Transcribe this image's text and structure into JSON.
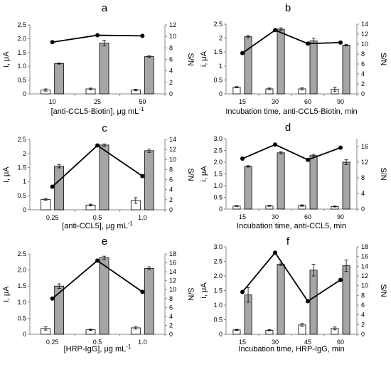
{
  "chart_data": [
    {
      "type": "bar",
      "panel_label": "a",
      "xlabel": "[anti-CCL5-Biotin], μg mL",
      "xlabel_sup": "-1",
      "ylabel": "i, μA",
      "y2label": "S/N",
      "categories": [
        "10",
        "25",
        "50"
      ],
      "ylim": [
        0,
        2.5
      ],
      "y_ticks": [
        "0",
        "0.5",
        "1.0",
        "1.5",
        "2.0",
        "2.5"
      ],
      "y2lim": [
        0,
        12
      ],
      "y2_ticks": [
        "0",
        "2",
        "4",
        "6",
        "8",
        "10",
        "12"
      ],
      "series": [
        {
          "values": [
            0.14,
            0.18,
            0.14
          ],
          "errors": [
            0.04,
            0.03,
            0.03
          ],
          "color": "#ffffff",
          "kind": "bar"
        },
        {
          "values": [
            1.1,
            1.84,
            1.35
          ],
          "errors": [
            0.02,
            0.1,
            0.03
          ],
          "color": "#a6a6a6",
          "kind": "bar"
        },
        {
          "values": [
            9.0,
            10.2,
            10.1
          ],
          "color": "#000000",
          "kind": "line",
          "axis": "right"
        }
      ]
    },
    {
      "type": "bar",
      "panel_label": "b",
      "xlabel": "Incubation time, anti-CCL5-Biotin, min",
      "ylabel": "i, μA",
      "y2label": "S/N",
      "categories": [
        "15",
        "30",
        "60",
        "90"
      ],
      "ylim": [
        0,
        2.5
      ],
      "y_ticks": [
        "0",
        "0.5",
        "1",
        "1.5",
        "2",
        "2.5"
      ],
      "y2lim": [
        0,
        14
      ],
      "y2_ticks": [
        "0",
        "2",
        "4",
        "6",
        "8",
        "10",
        "12",
        "14"
      ],
      "series": [
        {
          "values": [
            0.24,
            0.18,
            0.18,
            0.16
          ],
          "errors": [
            0.02,
            0.03,
            0.04,
            0.08
          ],
          "color": "#ffffff",
          "kind": "bar"
        },
        {
          "values": [
            2.05,
            2.32,
            1.9,
            1.75
          ],
          "errors": [
            0.04,
            0.05,
            0.1,
            0.03
          ],
          "color": "#a6a6a6",
          "kind": "bar"
        },
        {
          "values": [
            8.2,
            12.8,
            10.1,
            10.3
          ],
          "color": "#000000",
          "kind": "line",
          "axis": "right"
        }
      ]
    },
    {
      "type": "bar",
      "panel_label": "c",
      "xlabel": "[anti-CCL5], μg mL",
      "xlabel_sup": "-1",
      "ylabel": "i, μA",
      "y2label": "S/N",
      "categories": [
        "0.25",
        "0.5",
        "1.0"
      ],
      "ylim": [
        0,
        2.5
      ],
      "y_ticks": [
        "0",
        "0.5",
        "1",
        "1.5",
        "2",
        "2.5"
      ],
      "y2lim": [
        0,
        14
      ],
      "y2_ticks": [
        "0",
        "2",
        "4",
        "6",
        "8",
        "10",
        "12",
        "14"
      ],
      "series": [
        {
          "values": [
            0.37,
            0.17,
            0.33
          ],
          "errors": [
            0.03,
            0.03,
            0.1
          ],
          "color": "#ffffff",
          "kind": "bar"
        },
        {
          "values": [
            1.55,
            2.3,
            2.1
          ],
          "errors": [
            0.06,
            0.04,
            0.06
          ],
          "color": "#a6a6a6",
          "kind": "bar"
        },
        {
          "values": [
            4.6,
            12.8,
            6.7
          ],
          "color": "#000000",
          "kind": "line",
          "axis": "right"
        }
      ]
    },
    {
      "type": "bar",
      "panel_label": "d",
      "xlabel": "Incubation time, anti-CCL5, min",
      "ylabel": "i, μA",
      "y2label": "S/N",
      "categories": [
        "15",
        "30",
        "60",
        "90"
      ],
      "ylim": [
        0,
        3.0
      ],
      "y_ticks": [
        "0",
        "0.5",
        "1.0",
        "1.5",
        "2.0",
        "2.5",
        "3.0"
      ],
      "y2lim": [
        0,
        18
      ],
      "y2_ticks": [
        "0",
        "4",
        "8",
        "12",
        "16"
      ],
      "series": [
        {
          "values": [
            0.13,
            0.14,
            0.15,
            0.11
          ],
          "errors": [
            0.02,
            0.02,
            0.03,
            0.02
          ],
          "color": "#ffffff",
          "kind": "bar"
        },
        {
          "values": [
            1.82,
            2.4,
            2.28,
            2.0
          ],
          "errors": [
            0.03,
            0.05,
            0.05,
            0.1
          ],
          "color": "#a6a6a6",
          "kind": "bar"
        },
        {
          "values": [
            12.9,
            16.5,
            12.6,
            15.7
          ],
          "color": "#000000",
          "kind": "line",
          "axis": "right"
        }
      ]
    },
    {
      "type": "bar",
      "panel_label": "e",
      "xlabel": "[HRP-IgG], μg mL",
      "xlabel_sup": "-1",
      "ylabel": "i, μA",
      "y2label": "S/N",
      "categories": [
        "0.25",
        "0.5",
        "1.0"
      ],
      "ylim": [
        0,
        2.5
      ],
      "y_ticks": [
        "0",
        "0.5",
        "1.0",
        "1.5",
        "2.0",
        "2.5"
      ],
      "y2lim": [
        0,
        18
      ],
      "y2_ticks": [
        "0",
        "2",
        "4",
        "6",
        "8",
        "10",
        "12",
        "14",
        "16",
        "18"
      ],
      "series": [
        {
          "values": [
            0.18,
            0.14,
            0.2
          ],
          "errors": [
            0.05,
            0.02,
            0.04
          ],
          "color": "#ffffff",
          "kind": "bar"
        },
        {
          "values": [
            1.5,
            2.38,
            2.05
          ],
          "errors": [
            0.07,
            0.05,
            0.05
          ],
          "color": "#a6a6a6",
          "kind": "bar"
        },
        {
          "values": [
            8.0,
            16.5,
            9.5
          ],
          "color": "#000000",
          "kind": "line",
          "axis": "right"
        }
      ]
    },
    {
      "type": "bar",
      "panel_label": "f",
      "xlabel": "Incubation time, HRP-IgG, min",
      "ylabel": "i, μA",
      "y2label": "S/N",
      "categories": [
        "15",
        "30",
        "45",
        "60"
      ],
      "ylim": [
        0,
        3.0
      ],
      "y_ticks": [
        "0",
        "0.5",
        "1.0",
        "1.5",
        "2.0",
        "2.5",
        "3.0"
      ],
      "y2lim": [
        0,
        18
      ],
      "y2_ticks": [
        "0",
        "2",
        "4",
        "6",
        "8",
        "10",
        "12",
        "14",
        "16",
        "18"
      ],
      "series": [
        {
          "values": [
            0.15,
            0.14,
            0.32,
            0.2
          ],
          "errors": [
            0.02,
            0.02,
            0.05,
            0.05
          ],
          "color": "#ffffff",
          "kind": "bar"
        },
        {
          "values": [
            1.35,
            2.4,
            2.2,
            2.35
          ],
          "errors": [
            0.25,
            0.04,
            0.2,
            0.2
          ],
          "color": "#a6a6a6",
          "kind": "bar"
        },
        {
          "values": [
            8.7,
            16.8,
            6.8,
            11.2
          ],
          "color": "#000000",
          "kind": "line",
          "axis": "right"
        }
      ]
    }
  ]
}
